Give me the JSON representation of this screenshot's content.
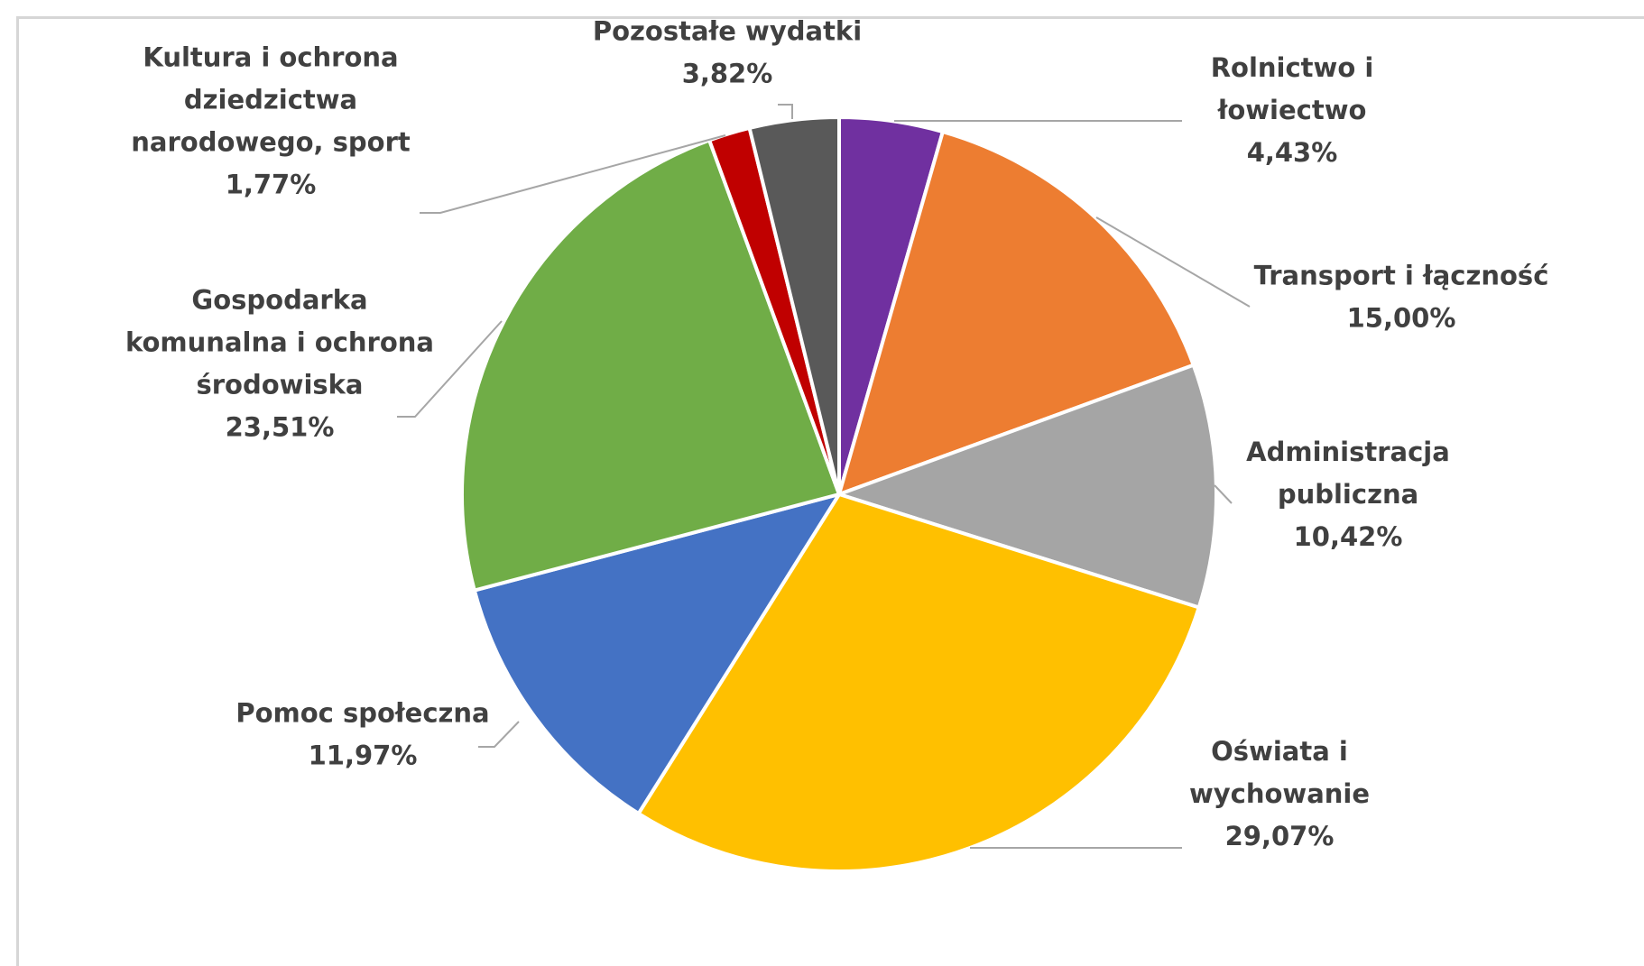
{
  "chart_data": {
    "type": "pie",
    "title": "",
    "slices": [
      {
        "label_lines": [
          "Rolnictwo i",
          "łowiectwo"
        ],
        "value_label": "4,43%",
        "value": 4.43,
        "color": "#7030a0"
      },
      {
        "label_lines": [
          "Transport i łączność"
        ],
        "value_label": "15,00%",
        "value": 15.0,
        "color": "#ed7d31"
      },
      {
        "label_lines": [
          "Administracja",
          "publiczna"
        ],
        "value_label": "10,42%",
        "value": 10.42,
        "color": "#a5a5a5"
      },
      {
        "label_lines": [
          "Oświata i",
          "wychowanie"
        ],
        "value_label": "29,07%",
        "value": 29.07,
        "color": "#ffc000"
      },
      {
        "label_lines": [
          "Pomoc społeczna"
        ],
        "value_label": "11,97%",
        "value": 11.97,
        "color": "#4472c4"
      },
      {
        "label_lines": [
          "Gospodarka",
          "komunalna i ochrona",
          "środowiska"
        ],
        "value_label": "23,51%",
        "value": 23.51,
        "color": "#70ad47"
      },
      {
        "label_lines": [
          "Kultura i ochrona",
          "dziedzictwa",
          "narodowego, sport"
        ],
        "value_label": "1,77%",
        "value": 1.77,
        "color": "#c00000"
      },
      {
        "label_lines": [
          "Pozostałe wydatki"
        ],
        "value_label": "3,82%",
        "value": 3.82,
        "color": "#595959"
      }
    ],
    "legend": "none",
    "label_style": "callouts with leader lines"
  }
}
